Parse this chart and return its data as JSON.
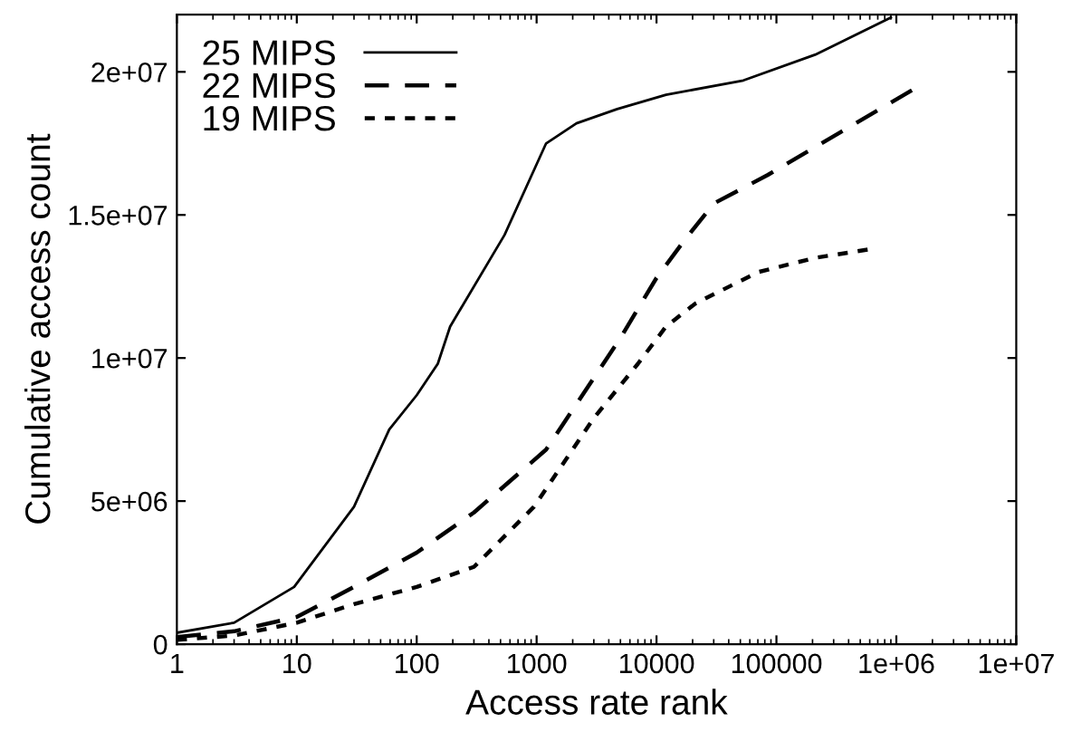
{
  "chart_data": {
    "type": "line",
    "xlabel": "Access rate rank",
    "ylabel": "Cumulative access count",
    "log": "x",
    "xlim": [
      1,
      10000000
    ],
    "ylim": [
      0,
      22000000
    ],
    "xticks": [
      1,
      10,
      100,
      1000,
      10000,
      100000,
      {
        "value": 1000000,
        "label": "1e+06"
      },
      {
        "value": 10000000,
        "label": "1e+07"
      }
    ],
    "yticks": [
      0,
      {
        "value": 5000000,
        "label": "5e+06"
      },
      {
        "value": 10000000,
        "label": "1e+07"
      },
      {
        "value": 15000000,
        "label": "1.5e+07"
      },
      {
        "value": 20000000,
        "label": "2e+07"
      }
    ],
    "grid": false,
    "legend": "top left",
    "marker": "none",
    "series": [
      {
        "name": "25 MIPS",
        "color": "#000000",
        "line_style": "solid",
        "x": [
          1,
          3,
          9.5,
          30,
          59,
          100,
          150,
          190,
          540,
          1200,
          2150,
          4700,
          12000,
          53000,
          210000,
          900000
        ],
        "values": [
          400000,
          750000,
          2000000,
          4800000,
          7500000,
          8700000,
          9800000,
          11100000,
          14300000,
          17500000,
          18200000,
          18700000,
          19200000,
          19700000,
          20600000,
          21900000
        ]
      },
      {
        "name": "22 MIPS",
        "color": "#000000",
        "line_style": "dashed",
        "x": [
          1,
          3,
          10,
          30,
          100,
          300,
          1200,
          5000,
          10000,
          17000,
          30000,
          85000,
          1400000
        ],
        "values": [
          250000,
          450000,
          950000,
          2000000,
          3200000,
          4600000,
          6800000,
          10700000,
          12800000,
          14100000,
          15400000,
          16400000,
          19400000
        ]
      },
      {
        "name": "19 MIPS",
        "color": "#000000",
        "line_style": "dotted",
        "x": [
          1,
          3,
          10,
          30,
          100,
          300,
          950,
          3000,
          7000,
          12000,
          21000,
          70000,
          210000,
          600000
        ],
        "values": [
          150000,
          300000,
          750000,
          1400000,
          2000000,
          2700000,
          4800000,
          7900000,
          9800000,
          11100000,
          11900000,
          13000000,
          13500000,
          13800000
        ]
      }
    ]
  }
}
